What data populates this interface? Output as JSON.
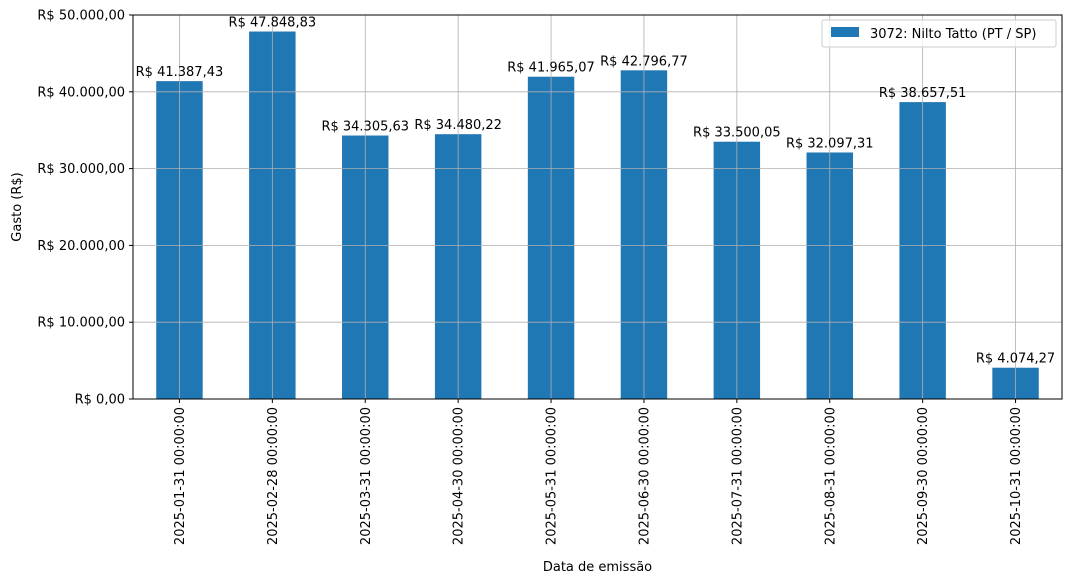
{
  "chart_data": {
    "type": "bar",
    "title": "",
    "xlabel": "Data de emissão",
    "ylabel": "Gasto (R$)",
    "ylim": [
      0,
      50000
    ],
    "yticks": [
      0,
      10000,
      20000,
      30000,
      40000,
      50000
    ],
    "ytick_labels": [
      "R$ 0,00",
      "R$ 10.000,00",
      "R$ 20.000,00",
      "R$ 30.000,00",
      "R$ 40.000,00",
      "R$ 50.000,00"
    ],
    "grid": true,
    "legend_position": "top-right",
    "categories": [
      "2025-01-31 00:00:00",
      "2025-02-28 00:00:00",
      "2025-03-31 00:00:00",
      "2025-04-30 00:00:00",
      "2025-05-31 00:00:00",
      "2025-06-30 00:00:00",
      "2025-07-31 00:00:00",
      "2025-08-31 00:00:00",
      "2025-09-30 00:00:00",
      "2025-10-31 00:00:00"
    ],
    "series": [
      {
        "name": "3072: Nilto Tatto (PT / SP)",
        "color": "#1f77b4",
        "values": [
          41387.43,
          47848.83,
          34305.63,
          34480.22,
          41965.07,
          42796.77,
          33500.05,
          32097.31,
          38657.51,
          4074.27
        ],
        "labels": [
          "R$ 41.387,43",
          "R$ 47.848,83",
          "R$ 34.305,63",
          "R$ 34.480,22",
          "R$ 41.965,07",
          "R$ 42.796,77",
          "R$ 33.500,05",
          "R$ 32.097,31",
          "R$ 38.657,51",
          "R$ 4.074,27"
        ]
      }
    ]
  }
}
